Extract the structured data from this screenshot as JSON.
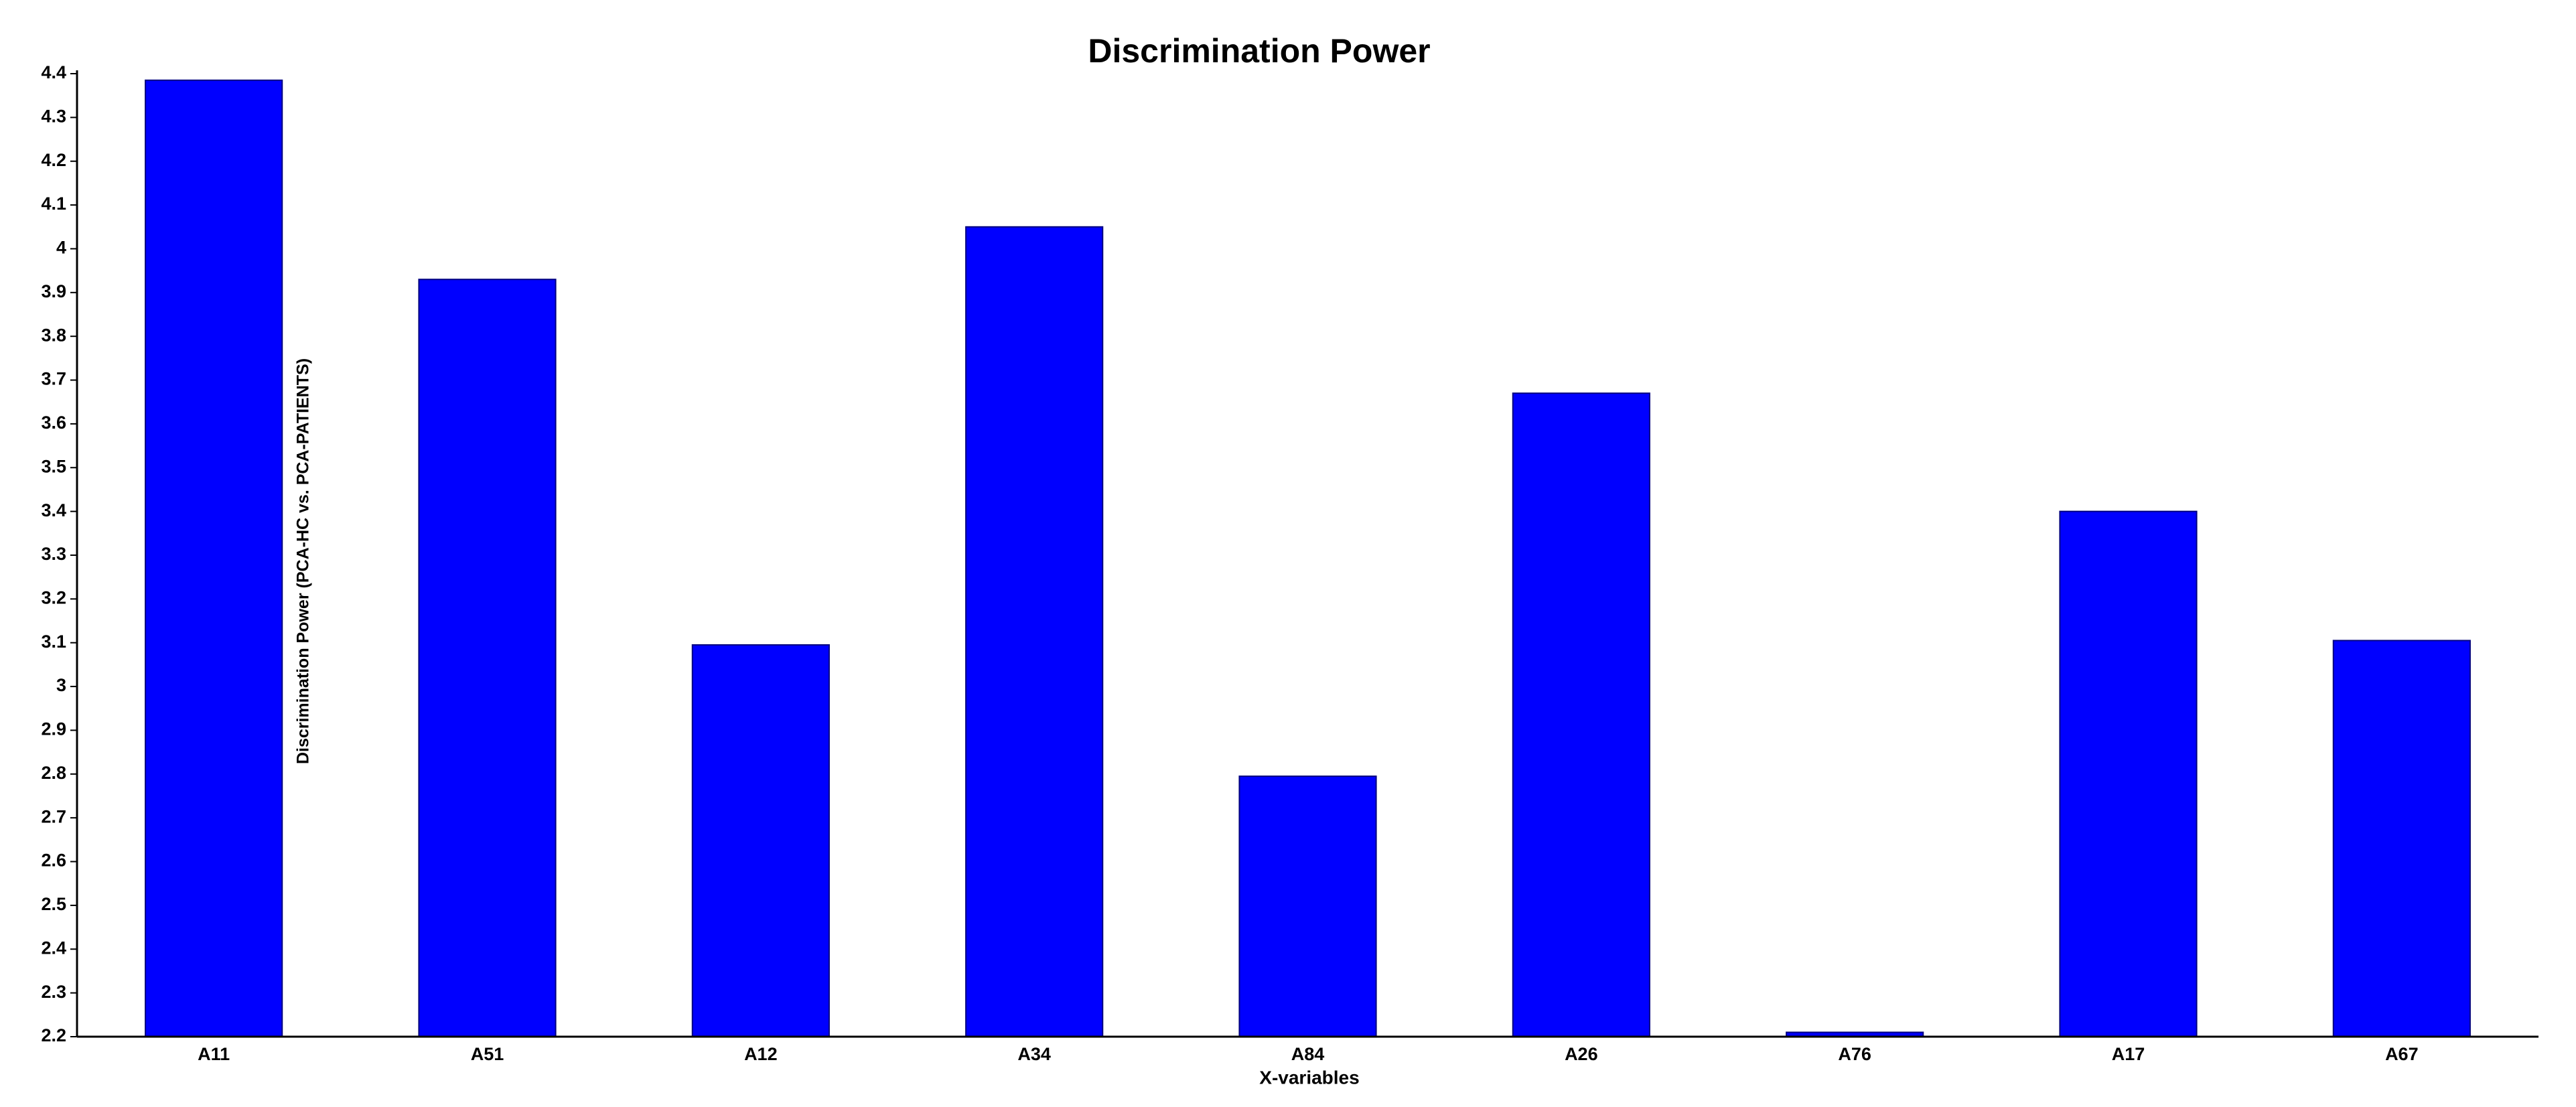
{
  "chart_data": {
    "type": "bar",
    "title": "Discrimination Power",
    "x_label": "X-variables",
    "y_label": "Discrimination Power (PCA-HC vs. PCA-PATIENTS)",
    "categories": [
      "A11",
      "A51",
      "A12",
      "A34",
      "A84",
      "A26",
      "A76",
      "A17",
      "A67"
    ],
    "values": [
      4.385,
      3.93,
      3.095,
      4.05,
      2.795,
      3.67,
      2.21,
      3.4,
      3.105
    ],
    "color": "#0000ff",
    "ylim": [
      2.2,
      4.4
    ],
    "yticks": [
      2.2,
      2.3,
      2.4,
      2.5,
      2.6,
      2.7,
      2.8,
      2.9,
      3,
      3.1,
      3.2,
      3.3,
      3.4,
      3.5,
      3.6,
      3.7,
      3.8,
      3.9,
      4,
      4.1,
      4.2,
      4.3,
      4.4
    ],
    "grid": false
  }
}
